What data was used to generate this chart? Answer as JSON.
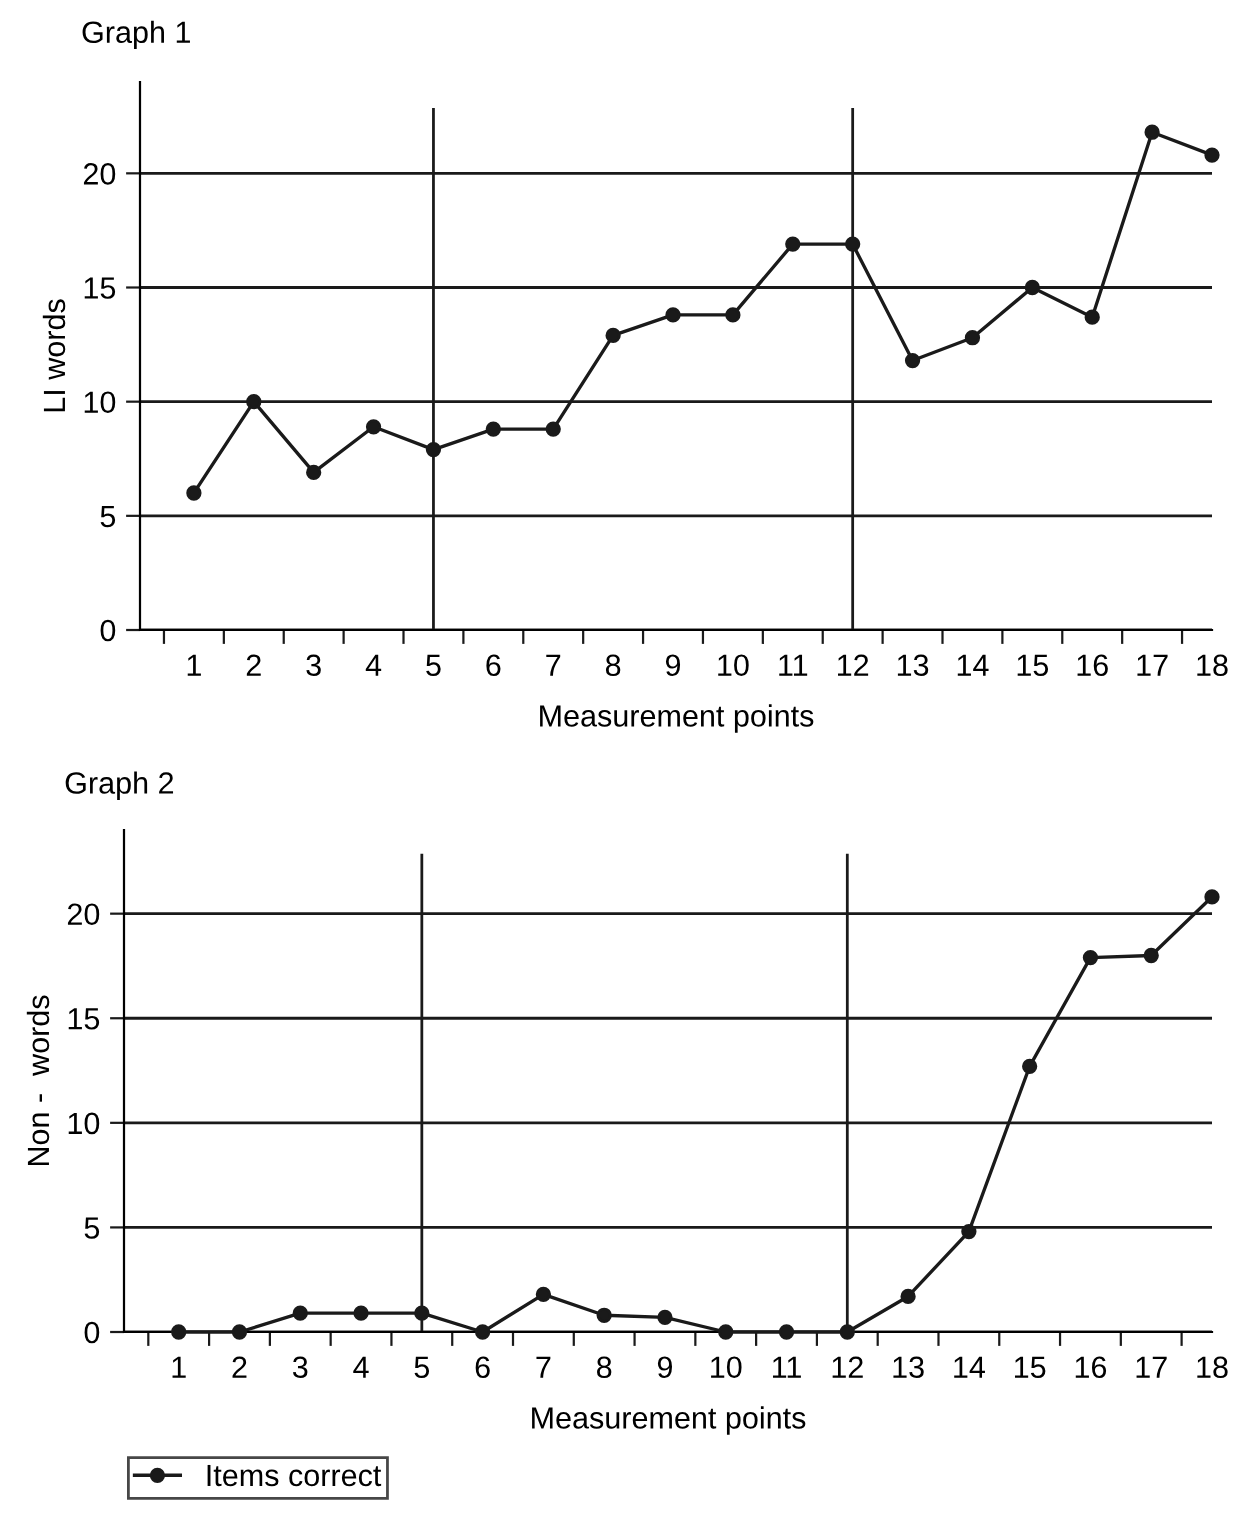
{
  "chart_data": [
    {
      "type": "line",
      "title": "Graph 1",
      "xlabel": "Measurement points",
      "ylabel": "LI words",
      "x": [
        1,
        2,
        3,
        4,
        5,
        6,
        7,
        8,
        9,
        10,
        11,
        12,
        13,
        14,
        15,
        16,
        17,
        18
      ],
      "series": [
        {
          "color": "#1a1a1a",
          "values": [
            6.0,
            10.0,
            6.9,
            8.9,
            7.9,
            8.8,
            8.8,
            12.9,
            13.8,
            13.8,
            16.9,
            16.9,
            11.8,
            12.8,
            15.0,
            13.7,
            21.8,
            20.8
          ]
        }
      ],
      "xlim": [
        0.1,
        18
      ],
      "xticks": [
        1,
        2,
        3,
        4,
        5,
        6,
        7,
        8,
        9,
        10,
        11,
        12,
        13,
        14,
        15,
        16,
        17,
        18,
        {
          "value": 0.5,
          "label": null
        },
        {
          "value": 1.5,
          "label": null
        },
        {
          "value": 2.5,
          "label": null
        },
        {
          "value": 3.5,
          "label": null
        },
        {
          "value": 4.5,
          "label": null
        },
        {
          "value": 5.5,
          "label": null
        },
        {
          "value": 6.5,
          "label": null
        },
        {
          "value": 7.5,
          "label": null
        },
        {
          "value": 8.5,
          "label": null
        },
        {
          "value": 9.5,
          "label": null
        },
        {
          "value": 10.5,
          "label": null
        },
        {
          "value": 11.5,
          "label": null
        },
        {
          "value": 12.5,
          "label": null
        },
        {
          "value": 13.5,
          "label": null
        },
        {
          "value": 14.5,
          "label": null
        },
        {
          "value": 15.5,
          "label": null
        },
        {
          "value": 16.5,
          "label": null
        },
        {
          "value": 17.5,
          "label": null
        }
      ],
      "ylim": [
        0,
        24
      ],
      "yticks": [
        0,
        5,
        10,
        15,
        20
      ],
      "grid": "y",
      "marker": "circle",
      "line_style": "solid",
      "ref_lines": [
        {
          "axis": "x",
          "value": 5,
          "color": "#1a1a1a"
        },
        {
          "axis": "x",
          "value": 12,
          "color": "#1a1a1a"
        }
      ]
    },
    {
      "type": "line",
      "title": "Graph 2",
      "xlabel": "Measurement points",
      "ylabel": "Non -  words",
      "x": [
        1,
        2,
        3,
        4,
        5,
        6,
        7,
        8,
        9,
        10,
        11,
        12,
        13,
        14,
        15,
        16,
        17,
        18
      ],
      "series": [
        {
          "name": "Items correct",
          "color": "#1a1a1a",
          "values": [
            0,
            0,
            0.9,
            0.9,
            0.9,
            0,
            1.8,
            0.8,
            0.7,
            0,
            0,
            0,
            1.7,
            4.8,
            12.7,
            17.9,
            18.0,
            20.8
          ]
        }
      ],
      "xlim": [
        0.1,
        18
      ],
      "xticks": [
        1,
        2,
        3,
        4,
        5,
        6,
        7,
        8,
        9,
        10,
        11,
        12,
        13,
        14,
        15,
        16,
        17,
        18,
        {
          "value": 0.5,
          "label": null
        },
        {
          "value": 1.5,
          "label": null
        },
        {
          "value": 2.5,
          "label": null
        },
        {
          "value": 3.5,
          "label": null
        },
        {
          "value": 4.5,
          "label": null
        },
        {
          "value": 5.5,
          "label": null
        },
        {
          "value": 6.5,
          "label": null
        },
        {
          "value": 7.5,
          "label": null
        },
        {
          "value": 8.5,
          "label": null
        },
        {
          "value": 9.5,
          "label": null
        },
        {
          "value": 10.5,
          "label": null
        },
        {
          "value": 11.5,
          "label": null
        },
        {
          "value": 12.5,
          "label": null
        },
        {
          "value": 13.5,
          "label": null
        },
        {
          "value": 14.5,
          "label": null
        },
        {
          "value": 15.5,
          "label": null
        },
        {
          "value": 16.5,
          "label": null
        },
        {
          "value": 17.5,
          "label": null
        }
      ],
      "ylim": [
        0,
        24
      ],
      "yticks": [
        0,
        5,
        10,
        15,
        20
      ],
      "grid": "y",
      "marker": "circle",
      "line_style": "solid",
      "legend": "bottom left",
      "ref_lines": [
        {
          "axis": "x",
          "value": 5,
          "color": "#1a1a1a"
        },
        {
          "axis": "x",
          "value": 12,
          "color": "#1a1a1a"
        }
      ]
    }
  ]
}
